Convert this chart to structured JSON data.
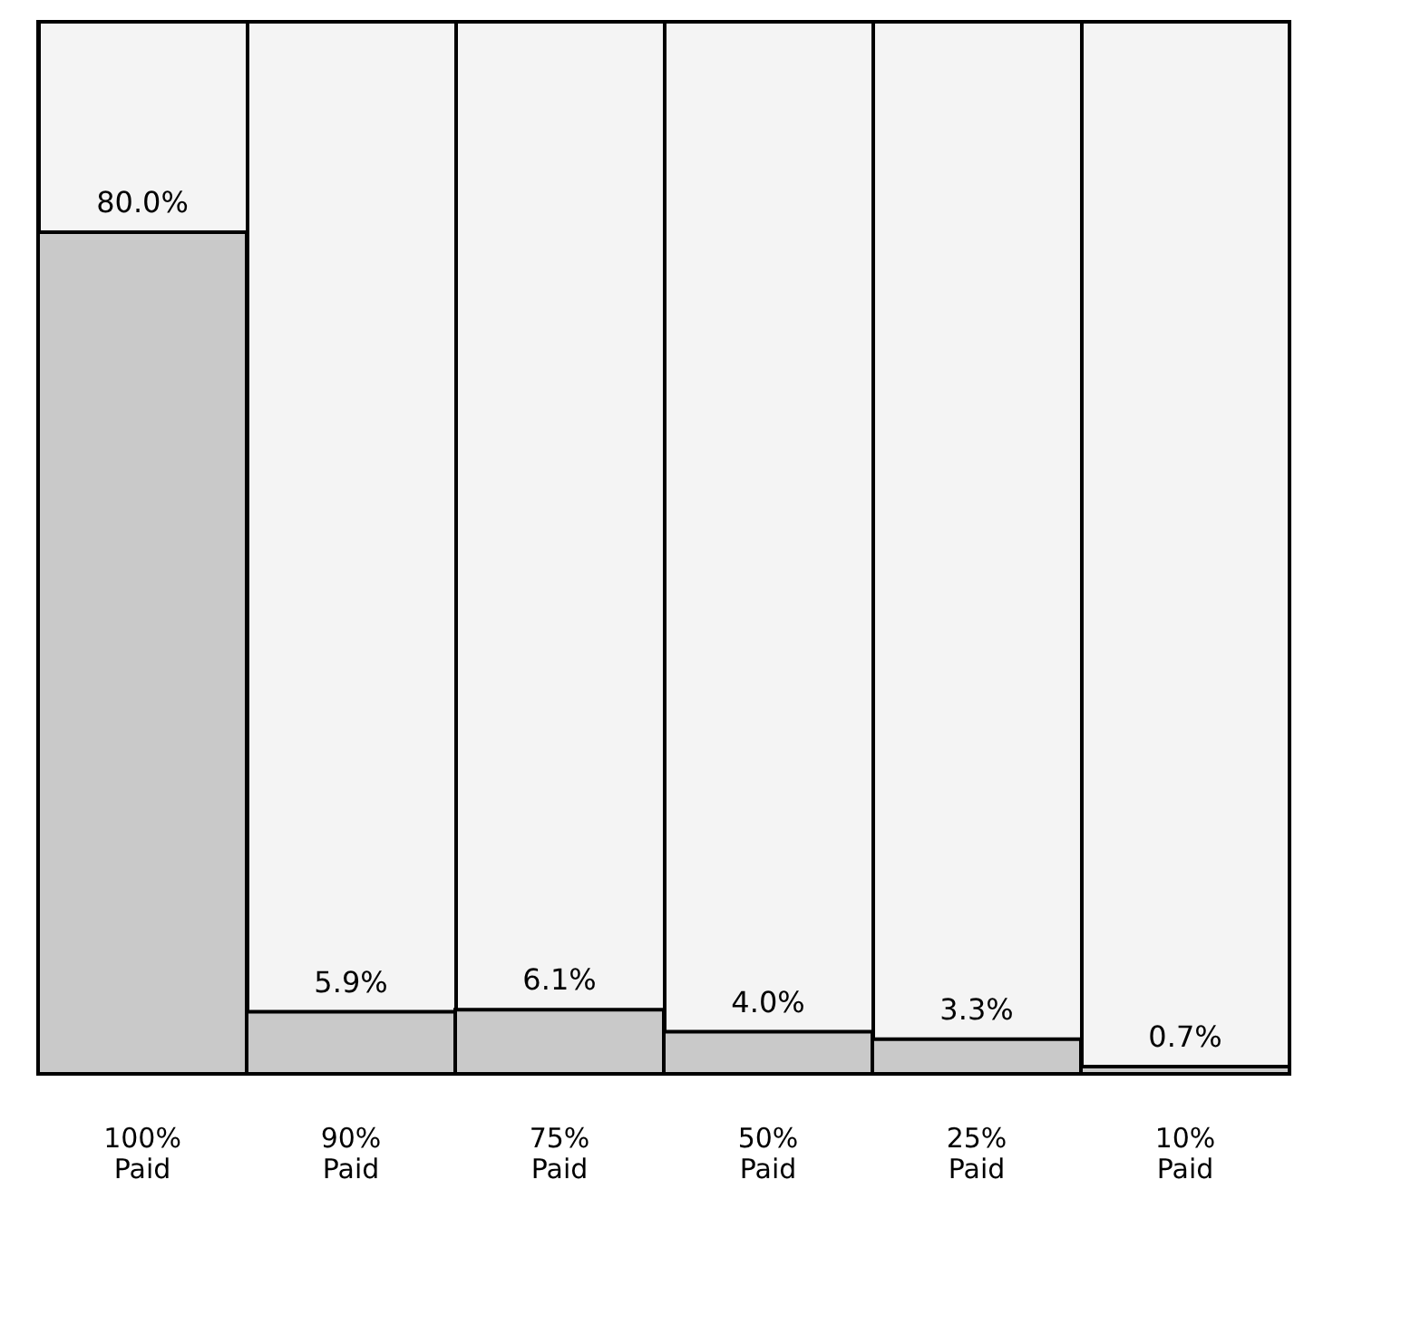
{
  "chart_data": {
    "type": "bar",
    "categories": [
      "100%\nPaid",
      "90%\nPaid",
      "75%\nPaid",
      "50%\nPaid",
      "25%\nPaid",
      "10%\nPaid"
    ],
    "values": [
      80.0,
      5.9,
      6.1,
      4.0,
      3.3,
      0.7
    ],
    "value_labels": [
      "80.0%",
      "5.9%",
      "6.1%",
      "4.0%",
      "3.3%",
      "0.7%"
    ],
    "color": "#c9c9c9",
    "ylim": [
      0,
      100
    ],
    "tick_labels": "x",
    "grid": "x"
  }
}
